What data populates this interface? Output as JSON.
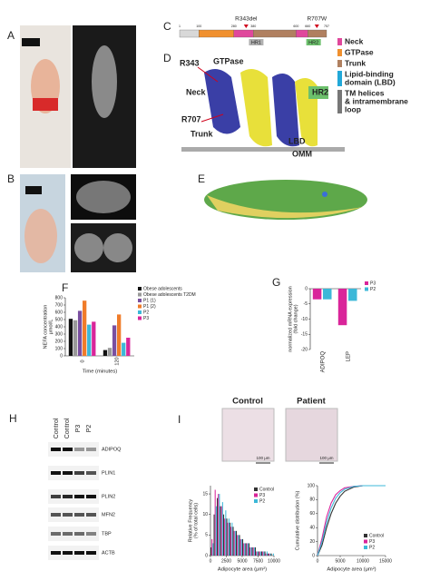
{
  "panel_letters": [
    "A",
    "B",
    "C",
    "D",
    "E",
    "F",
    "G",
    "H",
    "I"
  ],
  "domain_map": {
    "positions": [
      1,
      100,
      280,
      380,
      600,
      660,
      757
    ],
    "segment_colors": [
      "#d8d8d8",
      "#f0902e",
      "#e0489c",
      "#b08060",
      "#e0489c",
      "#b08060"
    ],
    "mutations": [
      {
        "label": "R343del",
        "position": 343
      },
      {
        "label": "R707W",
        "position": 707
      }
    ],
    "regions": [
      "HR1",
      "HR2"
    ]
  },
  "domain_legend": [
    {
      "lines": [
        "Neck"
      ],
      "color": "#e0489c"
    },
    {
      "lines": [
        "GTPase"
      ],
      "color": "#f0902e"
    },
    {
      "lines": [
        "Trunk"
      ],
      "color": "#b08060"
    },
    {
      "lines": [
        "Lipid-binding",
        "domain (LBD)"
      ],
      "color": "#22a8d8"
    },
    {
      "lines": [
        "TM helices",
        "& intramembrane",
        "loop"
      ],
      "color": "#777777"
    }
  ],
  "structure_labels": [
    {
      "text": "R343",
      "color": "#d0021b"
    },
    {
      "text": "GTPase",
      "color": "#e8862a"
    },
    {
      "text": "Neck",
      "color": "#d63c9a"
    },
    {
      "text": "HR2",
      "color": "#222222"
    },
    {
      "text": "R707",
      "color": "#d0021b"
    },
    {
      "text": "Trunk",
      "color": "#b07a50"
    },
    {
      "text": "LBD",
      "color": "#22a8d8"
    },
    {
      "text": "OMM",
      "color": "#333333"
    }
  ],
  "blot": {
    "lanes": [
      "Control",
      "Control",
      "P3",
      "P2"
    ],
    "proteins": [
      "ADIPOQ",
      "PLIN1",
      "PLIN2",
      "MFN2",
      "TBP",
      "ACTB"
    ]
  },
  "micrographs": {
    "titles": [
      "Control",
      "Patient"
    ],
    "scale_bars": [
      "100 μm",
      "100 μm"
    ]
  },
  "chart_data": [
    {
      "type": "bar",
      "ylabel": [
        "NEFA concentration",
        "μmol/L"
      ],
      "xlabel": "Time (minutes)",
      "categories": [
        "0",
        "120"
      ],
      "ylim": [
        0,
        800
      ],
      "yticks": [
        0,
        100,
        200,
        300,
        400,
        500,
        600,
        700,
        800
      ],
      "legend": "outside",
      "series": [
        {
          "name": "Obese adolescents",
          "color": "#111111",
          "values": [
            510,
            80
          ]
        },
        {
          "name": "Obese adolescents T2DM",
          "color": "#999999",
          "values": [
            490,
            110
          ]
        },
        {
          "name": "P1 (1)",
          "color": "#7a4fa0",
          "values": [
            620,
            420
          ]
        },
        {
          "name": "P1 (2)",
          "color": "#f07c2a",
          "values": [
            760,
            570
          ]
        },
        {
          "name": "P2",
          "color": "#3cb8d8",
          "values": [
            430,
            180
          ]
        },
        {
          "name": "P3",
          "color": "#d9259a",
          "values": [
            470,
            250
          ]
        }
      ]
    },
    {
      "type": "bar",
      "ylabel": [
        "normalized mRNA expression",
        "(fold change)"
      ],
      "categories": [
        "ADIPOQ",
        "LEP"
      ],
      "ylim": [
        -20,
        0
      ],
      "yticks": [
        0,
        -5,
        -10,
        -15,
        -20
      ],
      "legend": "outside",
      "series": [
        {
          "name": "P3",
          "color": "#d9259a",
          "values": [
            -3.5,
            -12
          ]
        },
        {
          "name": "P2",
          "color": "#3cb8d8",
          "values": [
            -3.5,
            -4
          ]
        }
      ]
    },
    {
      "type": "histogram",
      "ylabel": [
        "Relative Frequency",
        "(% of total cells)"
      ],
      "xlabel": "Adipocyte area (μm²)",
      "bins": [
        0,
        500,
        1000,
        1500,
        2000,
        2500,
        3000,
        3500,
        4000,
        4500,
        5000,
        5500,
        6000,
        6500,
        7000,
        7500,
        8000,
        8500,
        9000,
        9500,
        10000
      ],
      "xlim": [
        0,
        10000
      ],
      "xticks": [
        0,
        2500,
        5000,
        7500,
        10000
      ],
      "ylim": [
        0,
        17
      ],
      "yticks": [
        0,
        5,
        10,
        15
      ],
      "legend": "upper right",
      "series": [
        {
          "name": "Control",
          "color": "#333333",
          "values": [
            2,
            10,
            14,
            12,
            10,
            9,
            8,
            7,
            6,
            5,
            4,
            3,
            3,
            2,
            2,
            1,
            1,
            1,
            0.5,
            0.5
          ]
        },
        {
          "name": "P3",
          "color": "#d9259a",
          "values": [
            4,
            16,
            15,
            12,
            9,
            8,
            7,
            6,
            5,
            4,
            3,
            3,
            2,
            2,
            1,
            1,
            1,
            0.5,
            0.5,
            0
          ]
        },
        {
          "name": "P2",
          "color": "#3cb8d8",
          "values": [
            3,
            12,
            15,
            13,
            11,
            9,
            8,
            6,
            5,
            4,
            3,
            3,
            2,
            2,
            1,
            1,
            1,
            1,
            0.5,
            0.5
          ]
        }
      ]
    },
    {
      "type": "line",
      "ylabel": [
        "Cumulative distribution (%)"
      ],
      "xlabel": "Adipocyte area (μm²)",
      "x": [
        0,
        1000,
        2000,
        3000,
        4000,
        5000,
        6000,
        8000,
        10000,
        15000
      ],
      "xlim": [
        0,
        15000
      ],
      "xticks": [
        0,
        5000,
        10000,
        15000
      ],
      "ylim": [
        0,
        100
      ],
      "yticks": [
        0,
        20,
        40,
        60,
        80,
        100
      ],
      "legend": "lower right",
      "series": [
        {
          "name": "Control",
          "color": "#333333",
          "values": [
            0,
            15,
            40,
            60,
            75,
            85,
            92,
            98,
            100,
            100
          ]
        },
        {
          "name": "P3",
          "color": "#d9259a",
          "values": [
            0,
            25,
            55,
            75,
            87,
            93,
            97,
            99,
            100,
            100
          ]
        },
        {
          "name": "P2",
          "color": "#3cb8d8",
          "values": [
            0,
            20,
            47,
            68,
            82,
            90,
            95,
            99,
            100,
            100
          ]
        }
      ]
    }
  ]
}
